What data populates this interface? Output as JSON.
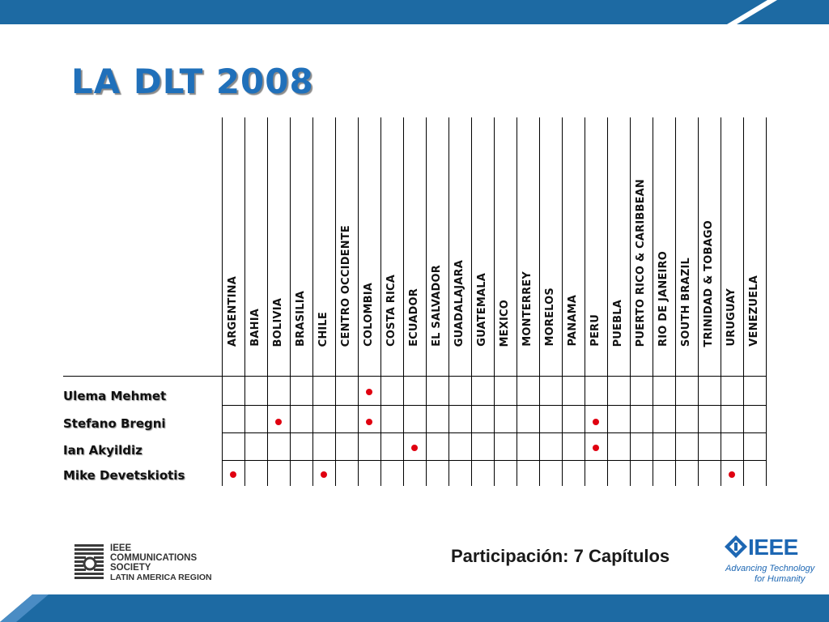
{
  "slide": {
    "title": "LA DLT 2008"
  },
  "columns": [
    "ARGENTINA",
    "BAHIA",
    "BOLIVIA",
    "BRASILIA",
    "CHILE",
    "CENTRO OCCIDENTE",
    "COLOMBIA",
    "COSTA RICA",
    "ECUADOR",
    "EL SALVADOR",
    "GUADALAJARA",
    "GUATEMALA",
    "MEXICO",
    "MONTERREY",
    "MORELOS",
    "PANAMA",
    "PERU",
    "PUEBLA",
    "PUERTO RICO & CARIBBEAN",
    "RIO DE JANEIRO",
    "SOUTH BRAZIL",
    "TRINIDAD & TOBAGO",
    "URUGUAY",
    "VENEZUELA"
  ],
  "rows": [
    {
      "name": "Ulema Mehmet",
      "marks": [
        6
      ]
    },
    {
      "name": "Stefano Bregni",
      "marks": [
        2,
        6,
        16
      ]
    },
    {
      "name": "Ian Akyildiz",
      "marks": [
        8,
        16
      ]
    },
    {
      "name": "Mike Devetskiotis",
      "marks": [
        0,
        4,
        22
      ]
    }
  ],
  "colors": {
    "title": "#2070ba",
    "mark": "#e00010",
    "band": "#1d6aa3",
    "ieee": "#1d67b3"
  },
  "footer": {
    "participation": "Participación: 7 Capítulos"
  },
  "logos": {
    "comsoc": {
      "line1": "IEEE",
      "line2": "COMMUNICATIONS",
      "line3": "SOCIETY",
      "line4": "LATIN AMERICA REGION"
    },
    "ieee": {
      "wordmark": "IEEE",
      "tagline1": "Advancing Technology",
      "tagline2": "for Humanity"
    }
  }
}
